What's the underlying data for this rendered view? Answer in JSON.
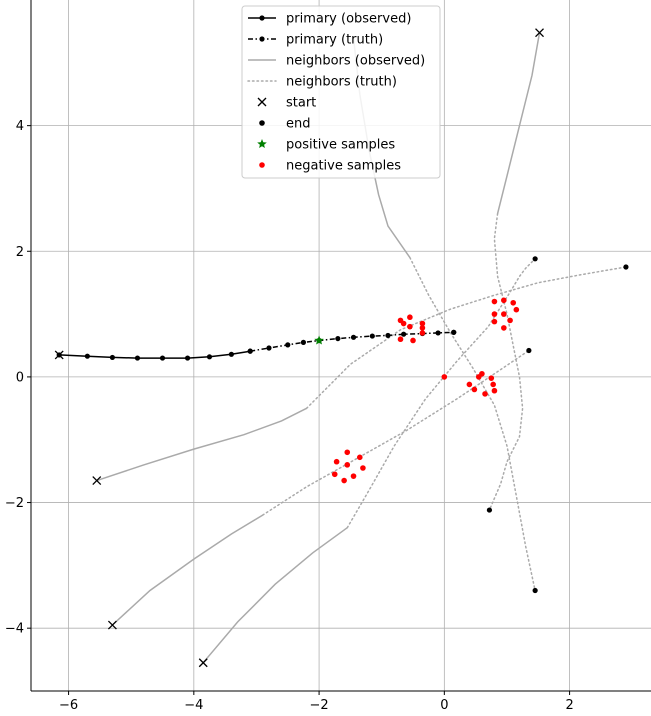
{
  "chart_data": {
    "type": "line",
    "grid": true,
    "xlim": [
      -6.6,
      3.3
    ],
    "ylim": [
      -5.0,
      6.0
    ],
    "xticks": [
      -6,
      -4,
      -2,
      0,
      2
    ],
    "yticks": [
      -4,
      -2,
      0,
      2,
      4
    ],
    "xtick_labels": [
      "−6",
      "−4",
      "−2",
      "0",
      "2"
    ],
    "ytick_labels": [
      "−4",
      "−2",
      "0",
      "2",
      "4"
    ],
    "legend_position": "top-center",
    "legend": [
      {
        "label": "primary (observed)",
        "kind": "line-dot",
        "color": "#000000",
        "dash": "none"
      },
      {
        "label": "primary (truth)",
        "kind": "line-dot",
        "color": "#000000",
        "dash": "dashdot"
      },
      {
        "label": "neighbors (observed)",
        "kind": "line",
        "color": "#aaaaaa",
        "dash": "none"
      },
      {
        "label": "neighbors (truth)",
        "kind": "line",
        "color": "#aaaaaa",
        "dash": "dot"
      },
      {
        "label": "start",
        "kind": "x",
        "color": "#000000"
      },
      {
        "label": "end",
        "kind": "dot",
        "color": "#000000"
      },
      {
        "label": "positive samples",
        "kind": "star",
        "color": "#008000"
      },
      {
        "label": "negative samples",
        "kind": "dot",
        "color": "#ff0000"
      }
    ],
    "primary_observed": {
      "x": [
        -6.15,
        -5.7,
        -5.3,
        -4.9,
        -4.5,
        -4.1,
        -3.75,
        -3.4,
        -3.1
      ],
      "y": [
        0.35,
        0.33,
        0.31,
        0.3,
        0.3,
        0.3,
        0.32,
        0.36,
        0.41
      ]
    },
    "primary_truth": {
      "x": [
        -3.1,
        -2.8,
        -2.5,
        -2.25,
        -2.0,
        -1.7,
        -1.45,
        -1.15,
        -0.9,
        -0.65,
        -0.35,
        -0.1,
        0.15
      ],
      "y": [
        0.41,
        0.46,
        0.51,
        0.55,
        0.58,
        0.61,
        0.63,
        0.65,
        0.66,
        0.68,
        0.69,
        0.7,
        0.71
      ]
    },
    "neighbors": [
      {
        "observed": {
          "x": [
            1.52,
            1.4,
            1.2,
            1.0,
            0.85
          ],
          "y": [
            5.48,
            4.8,
            4.0,
            3.2,
            2.6
          ]
        },
        "truth": {
          "x": [
            0.85,
            0.8,
            0.85,
            1.0,
            1.1,
            1.2,
            1.25,
            1.2,
            1.0,
            0.9,
            0.72
          ],
          "y": [
            2.6,
            2.2,
            1.6,
            1.0,
            0.5,
            0.0,
            -0.5,
            -0.95,
            -1.35,
            -1.7,
            -2.12
          ]
        }
      },
      {
        "observed": {
          "x": [
            -5.55,
            -4.8,
            -4.0,
            -3.2,
            -2.6,
            -2.2
          ],
          "y": [
            -1.65,
            -1.4,
            -1.15,
            -0.92,
            -0.7,
            -0.5
          ]
        },
        "truth": {
          "x": [
            -2.2,
            -1.5,
            -0.7,
            0.1,
            0.8,
            1.5,
            2.2,
            2.9
          ],
          "y": [
            -0.5,
            0.2,
            0.75,
            1.08,
            1.3,
            1.5,
            1.63,
            1.75
          ]
        }
      },
      {
        "observed": {
          "x": [
            -5.3,
            -4.7,
            -4.0,
            -3.4,
            -2.9
          ],
          "y": [
            -3.95,
            -3.4,
            -2.9,
            -2.5,
            -2.2
          ]
        },
        "truth": {
          "x": [
            -2.9,
            -2.2,
            -1.4,
            -0.6,
            0.2,
            0.8,
            1.35
          ],
          "y": [
            -2.2,
            -1.75,
            -1.3,
            -0.85,
            -0.35,
            0.05,
            0.42
          ]
        }
      },
      {
        "observed": {
          "x": [
            -3.85,
            -3.3,
            -2.7,
            -2.1,
            -1.55
          ],
          "y": [
            -4.55,
            -3.9,
            -3.3,
            -2.8,
            -2.4
          ]
        },
        "truth": {
          "x": [
            -1.55,
            -1.2,
            -0.8,
            -0.3,
            0.2,
            0.7,
            1.05,
            1.2,
            1.3,
            1.45
          ],
          "y": [
            -2.4,
            -1.8,
            -1.1,
            -0.35,
            0.25,
            0.8,
            1.35,
            1.6,
            1.73,
            1.88
          ]
        }
      },
      {
        "observed": {
          "x": [
            -0.55,
            -0.9,
            -1.05,
            -1.2,
            -1.35,
            -1.45
          ],
          "y": [
            1.9,
            2.4,
            2.9,
            3.6,
            4.5,
            5.4
          ]
        },
        "truth": {
          "x": [
            -0.55,
            -0.25,
            0.1,
            0.45,
            0.8,
            1.0,
            1.15,
            1.3,
            1.45
          ],
          "y": [
            1.9,
            1.3,
            0.7,
            0.15,
            -0.45,
            -1.1,
            -1.9,
            -2.7,
            -3.4
          ]
        }
      }
    ],
    "start": {
      "x": [
        -6.15,
        -5.55,
        -5.3,
        -3.85,
        1.52
      ],
      "y": [
        0.35,
        -1.65,
        -3.95,
        -4.55,
        5.48
      ]
    },
    "end": {
      "x": [
        0.15,
        0.72,
        1.35,
        1.45,
        1.45,
        2.9
      ],
      "y": [
        0.71,
        -2.12,
        0.42,
        1.88,
        -3.4,
        1.75
      ]
    },
    "positive_samples": {
      "x": [
        -2.0
      ],
      "y": [
        0.58
      ]
    },
    "negative_samples": {
      "x": [
        0.0,
        -0.65,
        -0.55,
        -0.35,
        -0.35,
        -0.7,
        -0.5,
        -0.55,
        -0.35,
        -0.7,
        0.8,
        0.95,
        1.1,
        1.15,
        1.05,
        0.95,
        0.8,
        0.8,
        0.95,
        0.4,
        0.55,
        0.75,
        0.8,
        0.65,
        0.48,
        0.6,
        0.78,
        -1.55,
        -1.35,
        -1.3,
        -1.45,
        -1.6,
        -1.75,
        -1.72,
        -1.55
      ],
      "y": [
        0.0,
        0.85,
        0.95,
        0.85,
        0.7,
        0.6,
        0.58,
        0.8,
        0.78,
        0.9,
        1.2,
        1.22,
        1.18,
        1.07,
        0.9,
        0.78,
        0.88,
        1.0,
        1.0,
        -0.12,
        0.0,
        -0.02,
        -0.22,
        -0.27,
        -0.2,
        0.05,
        -0.12,
        -1.2,
        -1.28,
        -1.45,
        -1.58,
        -1.65,
        -1.55,
        -1.35,
        -1.4
      ]
    }
  }
}
